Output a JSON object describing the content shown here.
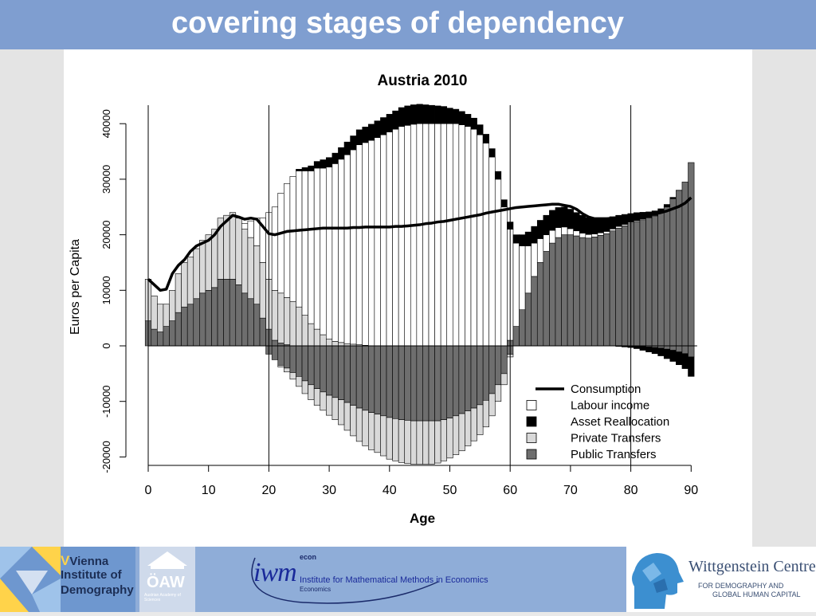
{
  "slide": {
    "title": "covering stages of dependency"
  },
  "colors": {
    "title_bar": "#7f9ed0",
    "labour_income": "#ffffff",
    "asset_reallocation": "#000000",
    "private_transfers": "#d9d9d9",
    "public_transfers": "#6e6e6e",
    "consumption": "#000000"
  },
  "chart_data": {
    "type": "bar",
    "stacked": true,
    "title": "Austria 2010",
    "xlabel": "Age",
    "ylabel": "Euros per Capita",
    "xlim": [
      0,
      91
    ],
    "ylim": [
      -21000,
      43000
    ],
    "x_ticks": [
      0,
      10,
      20,
      30,
      40,
      50,
      60,
      70,
      80,
      90
    ],
    "y_ticks": [
      -20000,
      -10000,
      0,
      10000,
      20000,
      30000,
      40000
    ],
    "reference_lines_x": [
      0,
      20,
      60,
      80
    ],
    "legend_position": "bottom-right",
    "ages": [
      0,
      1,
      2,
      3,
      4,
      5,
      6,
      7,
      8,
      9,
      10,
      11,
      12,
      13,
      14,
      15,
      16,
      17,
      18,
      19,
      20,
      21,
      22,
      23,
      24,
      25,
      26,
      27,
      28,
      29,
      30,
      31,
      32,
      33,
      34,
      35,
      36,
      37,
      38,
      39,
      40,
      41,
      42,
      43,
      44,
      45,
      46,
      47,
      48,
      49,
      50,
      51,
      52,
      53,
      54,
      55,
      56,
      57,
      58,
      59,
      60,
      61,
      62,
      63,
      64,
      65,
      66,
      67,
      68,
      69,
      70,
      71,
      72,
      73,
      74,
      75,
      76,
      77,
      78,
      79,
      80,
      81,
      82,
      83,
      84,
      85,
      86,
      87,
      88,
      89,
      90
    ],
    "series": [
      {
        "name": "Labour income",
        "values": [
          0,
          0,
          0,
          0,
          0,
          0,
          0,
          0,
          0,
          0,
          0,
          0,
          0,
          0,
          0,
          0,
          1000,
          3000,
          5000,
          8000,
          12000,
          15000,
          18000,
          20500,
          22500,
          24500,
          26000,
          27500,
          29000,
          30000,
          31000,
          32000,
          33000,
          34000,
          35000,
          36000,
          36500,
          37000,
          37500,
          38000,
          38500,
          39000,
          39500,
          39700,
          39900,
          40000,
          40000,
          40000,
          40000,
          40000,
          40000,
          40000,
          39800,
          39500,
          39000,
          38000,
          36500,
          34000,
          30000,
          25000,
          20000,
          15000,
          11500,
          8500,
          6000,
          4300,
          3000,
          2300,
          1800,
          1400,
          1100,
          900,
          800,
          650,
          550,
          450,
          400,
          350,
          300,
          260,
          220,
          180,
          150,
          120,
          100,
          80,
          60,
          40,
          20,
          0,
          0
        ]
      },
      {
        "name": "Asset Reallocation",
        "values": [
          0,
          0,
          0,
          0,
          0,
          0,
          0,
          0,
          0,
          0,
          0,
          0,
          0,
          0,
          0,
          0,
          0,
          0,
          0,
          0,
          0,
          0,
          0,
          0,
          0,
          300,
          600,
          900,
          1200,
          1500,
          1700,
          1900,
          2100,
          2300,
          2500,
          2700,
          2800,
          2900,
          3000,
          3100,
          3200,
          3300,
          3400,
          3500,
          3500,
          3500,
          3400,
          3300,
          3200,
          3100,
          2800,
          2600,
          2400,
          2200,
          2000,
          1800,
          1600,
          1500,
          1400,
          1300,
          1300,
          1500,
          2000,
          2500,
          3000,
          3300,
          3500,
          3600,
          3600,
          3600,
          3500,
          3300,
          3200,
          3000,
          2800,
          2600,
          2400,
          2200,
          2000,
          1800,
          1600,
          1400,
          1200,
          1000,
          800,
          600,
          400,
          200,
          0,
          0,
          0
        ]
      },
      {
        "name": "Private Transfers",
        "values": [
          7500,
          6000,
          5000,
          4000,
          5500,
          7000,
          8000,
          8500,
          9000,
          9500,
          10000,
          10500,
          11000,
          11500,
          12000,
          12000,
          11500,
          11000,
          10500,
          10000,
          9000,
          9000,
          9000,
          8500,
          8000,
          7000,
          5500,
          4000,
          3000,
          2000,
          1200,
          800,
          600,
          400,
          300,
          200,
          100,
          0,
          0,
          0,
          0,
          0,
          0,
          0,
          0,
          0,
          0,
          0,
          0,
          0,
          0,
          0,
          0,
          0,
          0,
          0,
          0,
          0,
          0,
          0,
          0,
          0,
          0,
          0,
          0,
          0,
          0,
          0,
          0,
          0,
          0,
          0,
          0,
          0,
          0,
          0,
          0,
          0,
          0,
          0,
          0,
          0,
          0,
          0,
          0,
          0,
          0,
          0,
          0,
          0,
          0
        ]
      },
      {
        "name": "Public Transfers",
        "values": [
          4500,
          3000,
          2500,
          3500,
          4500,
          6000,
          7000,
          7500,
          8500,
          9500,
          10000,
          10500,
          12000,
          12000,
          12000,
          11000,
          9500,
          8500,
          7500,
          5000,
          3000,
          1000,
          500,
          200,
          0,
          0,
          0,
          0,
          0,
          0,
          0,
          0,
          0,
          0,
          0,
          0,
          0,
          0,
          0,
          0,
          0,
          0,
          0,
          0,
          0,
          0,
          0,
          0,
          0,
          0,
          0,
          0,
          0,
          0,
          0,
          0,
          0,
          0,
          0,
          0,
          1000,
          3500,
          6500,
          9500,
          12500,
          15000,
          17000,
          18500,
          19500,
          20000,
          20000,
          19800,
          19500,
          19400,
          19600,
          19900,
          20200,
          20700,
          21200,
          21600,
          22000,
          22400,
          22700,
          23000,
          23400,
          24000,
          25000,
          26500,
          28000,
          29500,
          33000
        ]
      },
      {
        "name": "Consumption",
        "type": "line",
        "values": [
          12000,
          11000,
          10000,
          10200,
          13000,
          14500,
          15500,
          17000,
          18000,
          18500,
          19000,
          20000,
          21500,
          22500,
          23500,
          23200,
          22800,
          23000,
          22800,
          21500,
          20200,
          20000,
          20300,
          20600,
          20700,
          20800,
          20900,
          21000,
          21100,
          21200,
          21200,
          21200,
          21200,
          21200,
          21300,
          21300,
          21400,
          21400,
          21400,
          21400,
          21400,
          21500,
          21500,
          21600,
          21700,
          21800,
          22000,
          22100,
          22300,
          22400,
          22600,
          22800,
          23000,
          23200,
          23400,
          23600,
          23900,
          24100,
          24300,
          24500,
          24700,
          24900,
          25000,
          25100,
          25200,
          25300,
          25400,
          25500,
          25500,
          25300,
          25100,
          24600,
          23800,
          23200,
          22900,
          22900,
          22900,
          23000,
          23100,
          23200,
          23300,
          23400,
          23500,
          23600,
          23800,
          24000,
          24300,
          24700,
          25100,
          25700,
          26700
        ]
      }
    ],
    "negative_series": [
      {
        "name": "Public Transfers",
        "values": [
          0,
          0,
          0,
          0,
          0,
          0,
          0,
          0,
          0,
          0,
          0,
          0,
          0,
          0,
          0,
          0,
          0,
          0,
          0,
          0,
          -1500,
          -2500,
          -3500,
          -4000,
          -4800,
          -5500,
          -6300,
          -7000,
          -7700,
          -8300,
          -8900,
          -9300,
          -9700,
          -10200,
          -10700,
          -11200,
          -11600,
          -12000,
          -12300,
          -12600,
          -12900,
          -13100,
          -13300,
          -13400,
          -13500,
          -13500,
          -13500,
          -13500,
          -13500,
          -13300,
          -13000,
          -12600,
          -12200,
          -11700,
          -11200,
          -10600,
          -9800,
          -8600,
          -7000,
          -5000,
          -1500,
          0,
          0,
          0,
          0,
          0,
          0,
          0,
          0,
          0,
          0,
          0,
          0,
          0,
          0,
          0,
          0,
          0,
          0,
          0,
          0,
          0,
          -100,
          -200,
          -300,
          -400,
          -600,
          -800,
          -1100,
          -1400,
          -2000
        ]
      },
      {
        "name": "Private Transfers",
        "values": [
          0,
          0,
          0,
          0,
          0,
          0,
          0,
          0,
          0,
          0,
          0,
          0,
          0,
          0,
          0,
          0,
          0,
          0,
          0,
          0,
          0,
          0,
          -300,
          -700,
          -1200,
          -1800,
          -2300,
          -2700,
          -3000,
          -3300,
          -3600,
          -4000,
          -4500,
          -5000,
          -5500,
          -6000,
          -6400,
          -6700,
          -6900,
          -7200,
          -7500,
          -7600,
          -7700,
          -7800,
          -7800,
          -7800,
          -7800,
          -7800,
          -7600,
          -7400,
          -7200,
          -7000,
          -6700,
          -6300,
          -5900,
          -5400,
          -4800,
          -4000,
          -3000,
          -2000,
          -500,
          0,
          0,
          0,
          0,
          0,
          0,
          0,
          0,
          0,
          0,
          0,
          0,
          0,
          0,
          0,
          0,
          0,
          0,
          0,
          0,
          0,
          0,
          0,
          0,
          0,
          0,
          0,
          0,
          0,
          0
        ]
      },
      {
        "name": "Asset Reallocation",
        "values": [
          0,
          0,
          0,
          0,
          0,
          0,
          0,
          0,
          0,
          0,
          0,
          0,
          0,
          0,
          0,
          0,
          0,
          0,
          0,
          0,
          0,
          0,
          0,
          0,
          0,
          0,
          0,
          0,
          0,
          0,
          0,
          0,
          0,
          0,
          0,
          0,
          0,
          0,
          0,
          0,
          0,
          0,
          0,
          0,
          0,
          0,
          0,
          0,
          0,
          0,
          0,
          0,
          0,
          0,
          0,
          0,
          0,
          0,
          0,
          0,
          0,
          0,
          0,
          0,
          0,
          0,
          0,
          0,
          0,
          0,
          0,
          0,
          0,
          0,
          0,
          0,
          0,
          0,
          -100,
          -200,
          -300,
          -500,
          -700,
          -900,
          -1100,
          -1400,
          -1700,
          -2000,
          -2300,
          -2700,
          -3500
        ]
      }
    ]
  },
  "footer": {
    "vid": {
      "line1": "Vienna",
      "line2": "Institute of",
      "line3": "Demography"
    },
    "oaw": {
      "mark": "ÖAW",
      "sub": "Austrian Academy of Sciences"
    },
    "iwm": {
      "mark": "iwm",
      "econ": "econ",
      "line1": "Institute for Mathematical Methods in Economics",
      "line2": "Economics"
    },
    "wittgenstein": {
      "name": "Wittgenstein Centre",
      "sub1": "FOR DEMOGRAPHY AND",
      "sub2": "GLOBAL HUMAN CAPITAL"
    }
  }
}
